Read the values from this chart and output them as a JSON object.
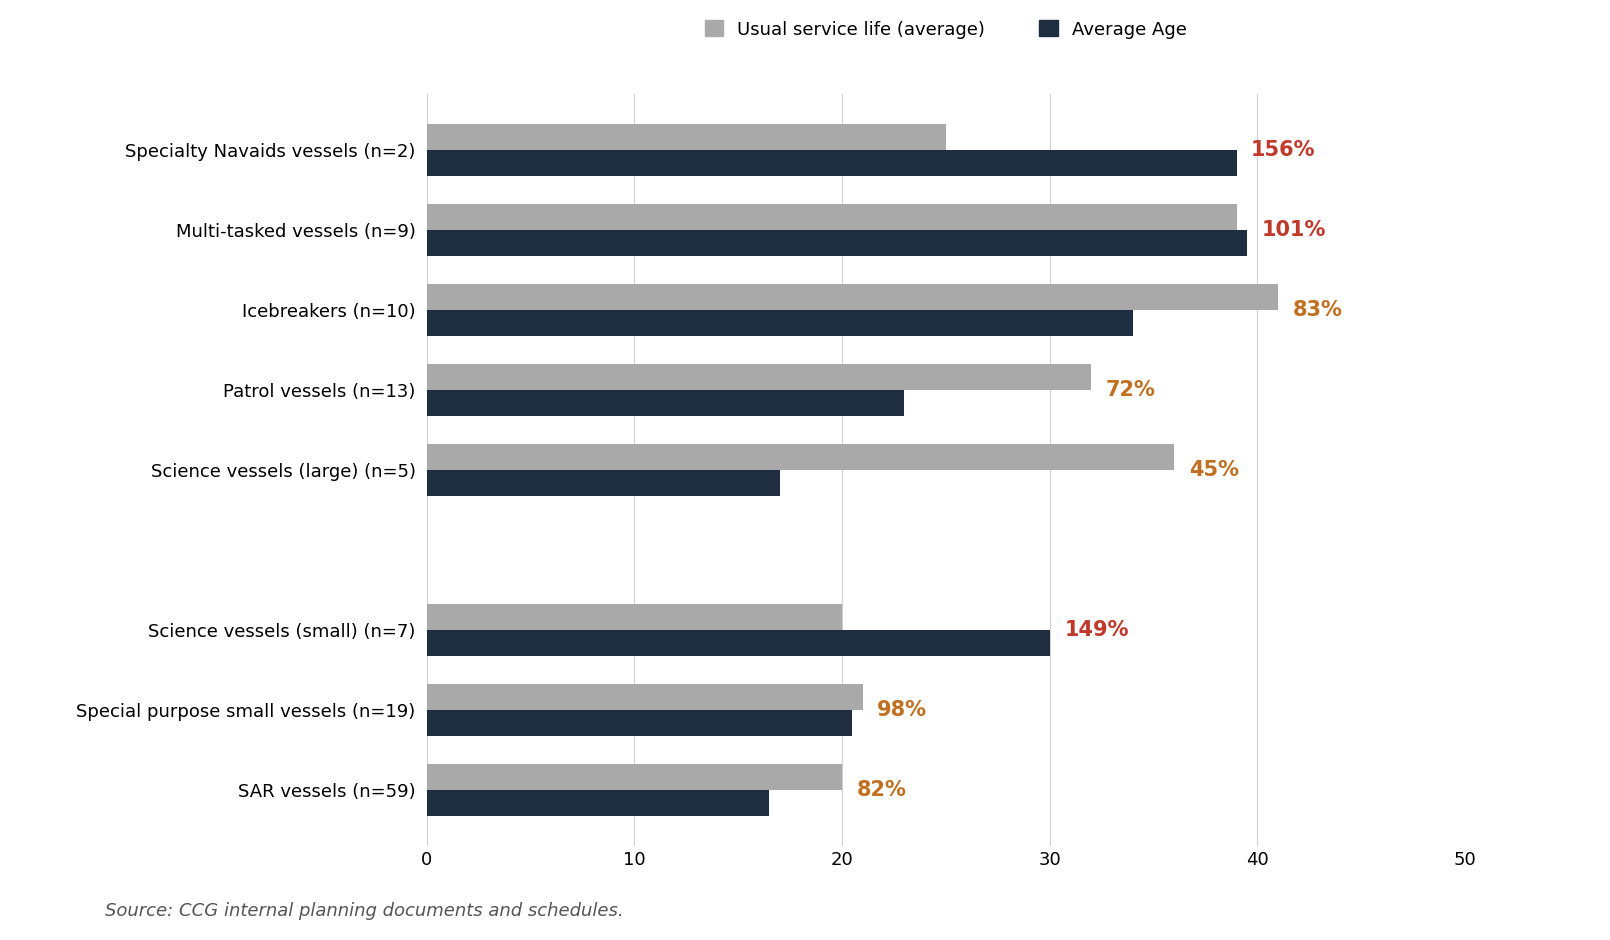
{
  "categories": [
    "Specialty Navaids vessels (n=2)",
    "Multi-tasked vessels (n=9)",
    "Icebreakers (n=10)",
    "Patrol vessels (n=13)",
    "Science vessels (large) (n=5)",
    "",
    "Science vessels (small) (n=7)",
    "Special purpose small vessels (n=19)",
    "SAR vessels (n=59)"
  ],
  "service_life": [
    25.0,
    39.0,
    41.0,
    32.0,
    36.0,
    0,
    20.0,
    21.0,
    20.0
  ],
  "average_age": [
    39.0,
    39.5,
    34.0,
    23.0,
    17.0,
    0,
    30.0,
    20.5,
    16.5
  ],
  "percentages": [
    "156%",
    "101%",
    "83%",
    "72%",
    "45%",
    "",
    "149%",
    "98%",
    "82%"
  ],
  "pct_colors": [
    "#c0392b",
    "#c0392b",
    "#c07020",
    "#c07020",
    "#c07020",
    "",
    "#c0392b",
    "#c07020",
    "#c07020"
  ],
  "color_service": "#a9a9a9",
  "color_age": "#1e2d40",
  "legend_labels": [
    "Usual service life (average)",
    "Average Age"
  ],
  "xlim": [
    0,
    50
  ],
  "xticks": [
    0,
    10,
    20,
    30,
    40,
    50
  ],
  "source_text": "Source: CCG internal planning documents and schedules.",
  "background_color": "#ffffff",
  "bar_height": 0.32,
  "title_fontsize": 13,
  "tick_fontsize": 13,
  "label_fontsize": 13,
  "pct_fontsize": 15,
  "source_fontsize": 13
}
